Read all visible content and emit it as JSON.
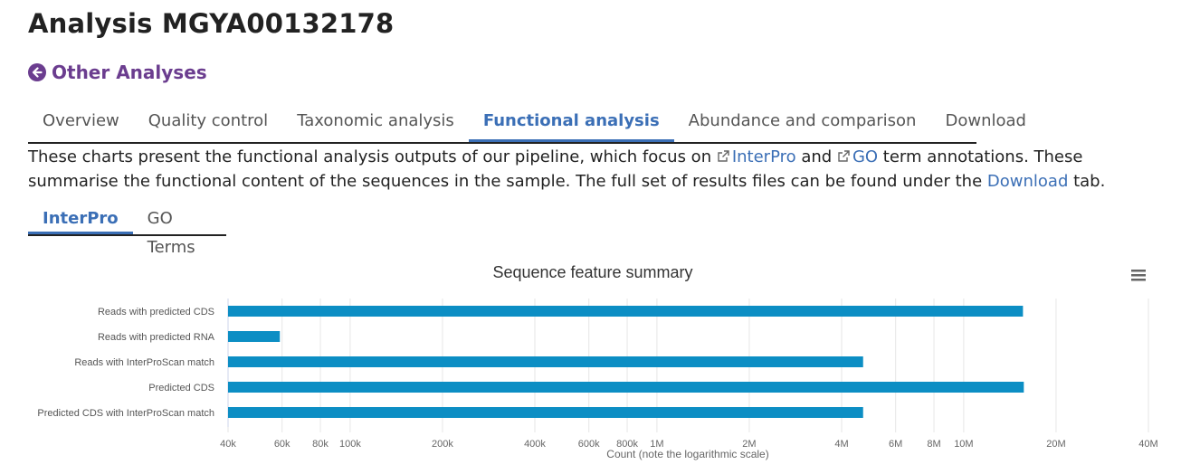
{
  "page": {
    "title": "Analysis MGYA00132178",
    "back_link": "Other Analyses"
  },
  "tabs": [
    {
      "label": "Overview",
      "active": false
    },
    {
      "label": "Quality control",
      "active": false
    },
    {
      "label": "Taxonomic analysis",
      "active": false
    },
    {
      "label": "Functional analysis",
      "active": true
    },
    {
      "label": "Abundance and comparison",
      "active": false
    },
    {
      "label": "Download",
      "active": false
    }
  ],
  "description": {
    "part1": "These charts present the functional analysis outputs of our pipeline, which focus on ",
    "link1": "InterPro",
    "part2": " and ",
    "link2": "GO",
    "part3": " term annotations. These summarise the functional content of the sequences in the sample. The full set of results files can be found under the ",
    "link3": "Download",
    "part4": " tab."
  },
  "subtabs": [
    {
      "label": "InterPro",
      "active": true
    },
    {
      "label": "GO Terms",
      "active": false
    }
  ],
  "chart_data": {
    "type": "bar",
    "orientation": "horizontal",
    "title": "Sequence feature summary",
    "xlabel": "Count (note the logarithmic scale)",
    "x_scale": "log",
    "xlim": [
      40000,
      40000000
    ],
    "categories": [
      "Reads with predicted CDS",
      "Reads with predicted RNA",
      "Reads with InterProScan match",
      "Predicted CDS",
      "Predicted CDS with InterProScan match"
    ],
    "values": [
      15600000,
      59000,
      4700000,
      15700000,
      4700000
    ],
    "x_ticks": [
      {
        "value": 40000,
        "label": "40k"
      },
      {
        "value": 60000,
        "label": "60k"
      },
      {
        "value": 80000,
        "label": "80k"
      },
      {
        "value": 100000,
        "label": "100k"
      },
      {
        "value": 200000,
        "label": "200k"
      },
      {
        "value": 400000,
        "label": "400k"
      },
      {
        "value": 600000,
        "label": "600k"
      },
      {
        "value": 800000,
        "label": "800k"
      },
      {
        "value": 1000000,
        "label": "1M"
      },
      {
        "value": 2000000,
        "label": "2M"
      },
      {
        "value": 4000000,
        "label": "4M"
      },
      {
        "value": 6000000,
        "label": "6M"
      },
      {
        "value": 8000000,
        "label": "8M"
      },
      {
        "value": 10000000,
        "label": "10M"
      },
      {
        "value": 20000000,
        "label": "20M"
      },
      {
        "value": 40000000,
        "label": "40M"
      }
    ],
    "bar_color": "#0c8ec4",
    "grid": true,
    "legend": false
  },
  "colors": {
    "accent": "#3b6fb6",
    "back_link": "#6b3d8f"
  },
  "icons": {
    "back": "arrow-left-circle-icon",
    "external_link": "external-link-icon",
    "chart_menu": "hamburger-menu-icon"
  }
}
